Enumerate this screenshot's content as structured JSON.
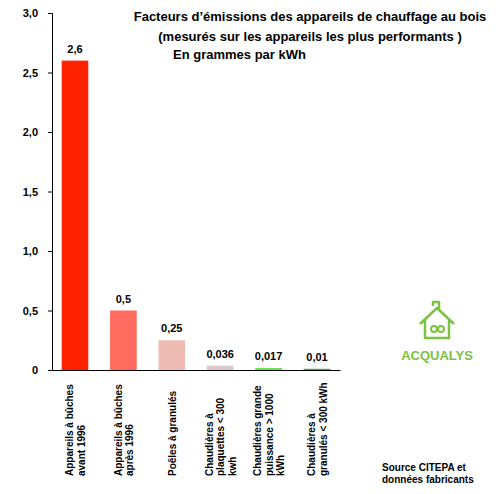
{
  "chart_data": {
    "type": "bar",
    "title": "Facteurs d’émissions des appareils de chauffage au bois",
    "subtitle": "(mesurés sur les appareils les plus performants )",
    "ylabel": "En grammes par kWh",
    "categories": [
      "Appareils à bûches avant 1996",
      "Appareils à bûches après 1996",
      "Poêles à granulés",
      "Chaudières à plaquettes < 300 kwh",
      "Chaudières grande puissance > 1000 kWh",
      "Chaudières à granulés < 300 kWh"
    ],
    "values": [
      2.6,
      0.5,
      0.25,
      0.036,
      0.017,
      0.01
    ],
    "value_labels": [
      "2,6",
      "0,5",
      "0,25",
      "0,036",
      "0,017",
      "0,01"
    ],
    "colors": [
      "#ff2200",
      "#ff6b5e",
      "#efbcb4",
      "#dccaca",
      "#6ee05a",
      "#22b822"
    ],
    "data_labels": true,
    "ylim": [
      0,
      3
    ],
    "yticks": [
      0,
      {
        "value": 0.5,
        "label": "0,5"
      },
      {
        "value": 1,
        "label": "1,0"
      },
      {
        "value": 1.5,
        "label": "1,5"
      },
      {
        "value": 2,
        "label": "2,0"
      },
      {
        "value": 2.5,
        "label": "2,5"
      },
      {
        "value": 3,
        "label": "3,0"
      }
    ],
    "grid": false,
    "source": "Source CITEPA et données fabricants",
    "annotations": [
      "ACQUALYS"
    ]
  }
}
